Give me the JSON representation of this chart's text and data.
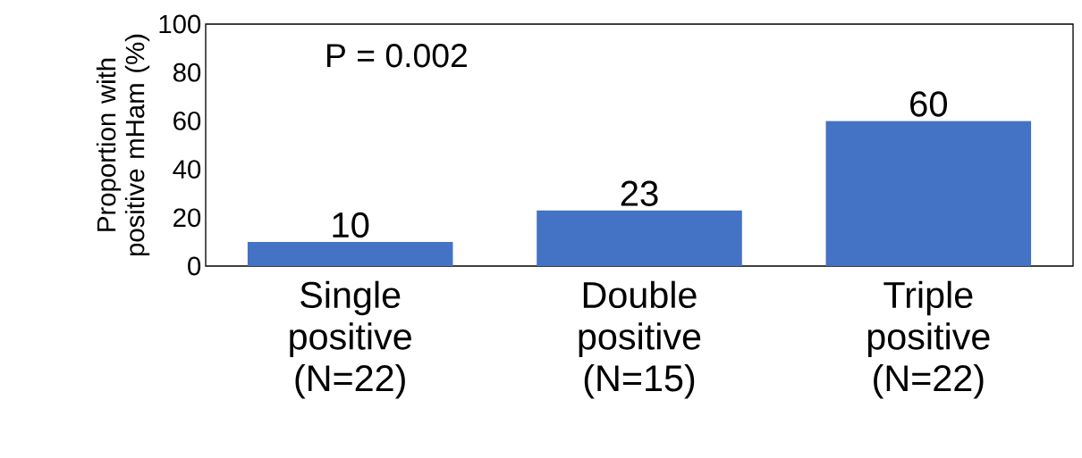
{
  "chart_data": {
    "type": "bar",
    "ylabel": "Proportion with positive mHam (%)",
    "categories": [
      "Single positive (N=22)",
      "Double positive (N=15)",
      "Triple positive (N=22)"
    ],
    "values": [
      10,
      23,
      60
    ],
    "color": "#4472c4",
    "ylim": [
      0,
      100
    ],
    "yticks": [
      0,
      20,
      40,
      60,
      80,
      100
    ],
    "data_labels": true,
    "grid": false,
    "annotations": [
      "P = 0.002"
    ]
  }
}
